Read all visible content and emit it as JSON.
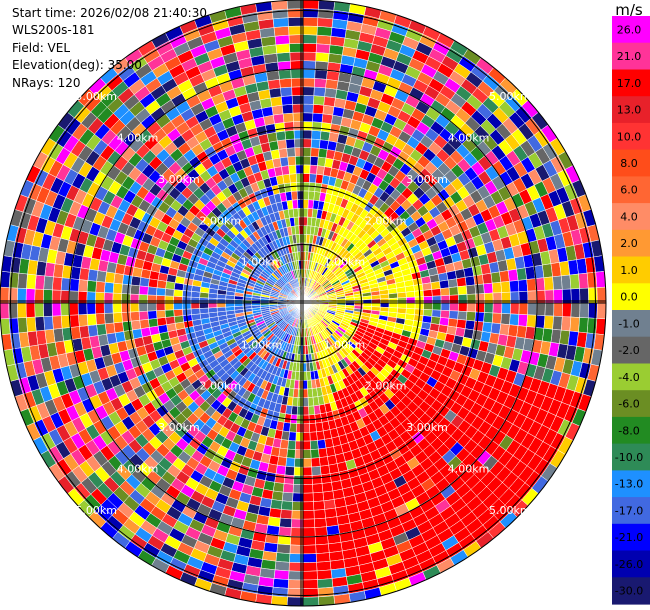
{
  "header": {
    "start_time": "Start time: 2026/02/08 21:40:30",
    "site": "WLS200s-181",
    "field": "Field: VEL",
    "elevation": "Elevation(deg): 35.00",
    "nrays": "NRays: 120"
  },
  "chart_data": {
    "type": "polar-ppi",
    "field": "VEL",
    "units": "m/s",
    "nrays": 120,
    "elevation_deg": 35.0,
    "range_rings_km": [
      1,
      2,
      3,
      4,
      5
    ],
    "ring_labels": [
      "1.00km",
      "2.00km",
      "3.00km",
      "4.00km",
      "5.00km"
    ],
    "colorbar": {
      "title": "m/s",
      "tick_labels": [
        "26.0",
        "21.0",
        "17.0",
        "13.0",
        "10.0",
        "8.0",
        "6.0",
        "4.0",
        "2.0",
        "1.0",
        "0.0",
        "-1.0",
        "-2.0",
        "-4.0",
        "-6.0",
        "-8.0",
        "-10.0",
        "-13.0",
        "-17.0",
        "-21.0",
        "-26.0",
        "-30.0"
      ],
      "colors": [
        "#ff00ff",
        "#ff3399",
        "#ff0000",
        "#e8212a",
        "#ff3333",
        "#ff4d1a",
        "#ff6633",
        "#ff8c66",
        "#ff9933",
        "#ffcc00",
        "#ffff00",
        "#708090",
        "#666666",
        "#9acd32",
        "#6b8e23",
        "#228b22",
        "#2e8b57",
        "#1e90ff",
        "#4169e1",
        "#0000ff",
        "#0000b0",
        "#191970"
      ]
    },
    "strong_return": {
      "description": "",
      "value_ms": 21.0,
      "color": "#ff0000"
    }
  }
}
